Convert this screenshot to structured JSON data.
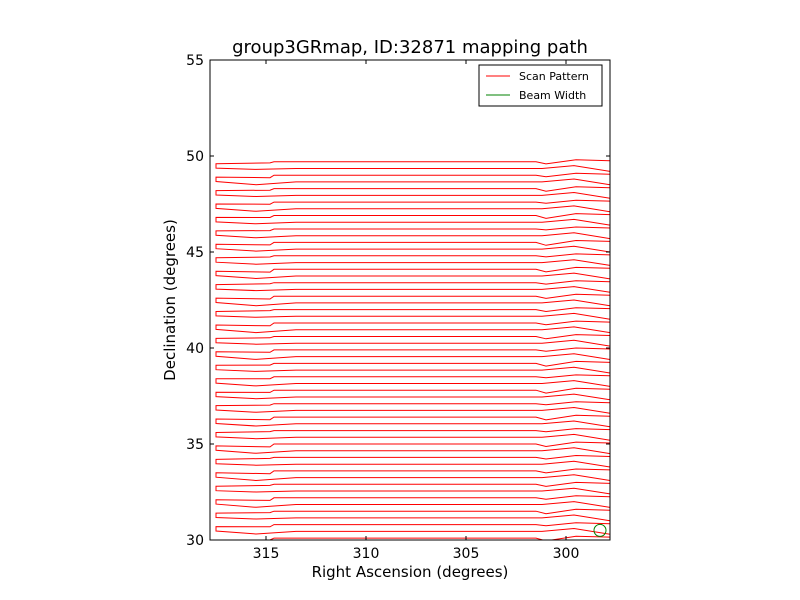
{
  "chart_data": {
    "type": "line",
    "title": "group3GRmap, ID:32871 mapping path",
    "xlabel": "Right Ascension (degrees)",
    "ylabel": "Declination (degrees)",
    "xlim": [
      317.8,
      297.8
    ],
    "ylim": [
      30,
      55
    ],
    "x_ticks": [
      315,
      310,
      305,
      300
    ],
    "y_ticks": [
      30,
      35,
      40,
      45,
      50,
      55
    ],
    "grid": false,
    "legend_position": "top-right",
    "series": [
      {
        "name": "Scan Pattern",
        "color": "#ff0000",
        "pattern": "boustrophedon raster scan",
        "ra_range": [
          317.5,
          297.8
        ],
        "dec_range": [
          30.0,
          49.9
        ],
        "row_step": 0.35
      },
      {
        "name": "Beam Width",
        "color": "#008000",
        "shape": "circle",
        "center_ra": 298.3,
        "center_dec": 30.5,
        "diameter_deg": 0.6
      }
    ]
  }
}
